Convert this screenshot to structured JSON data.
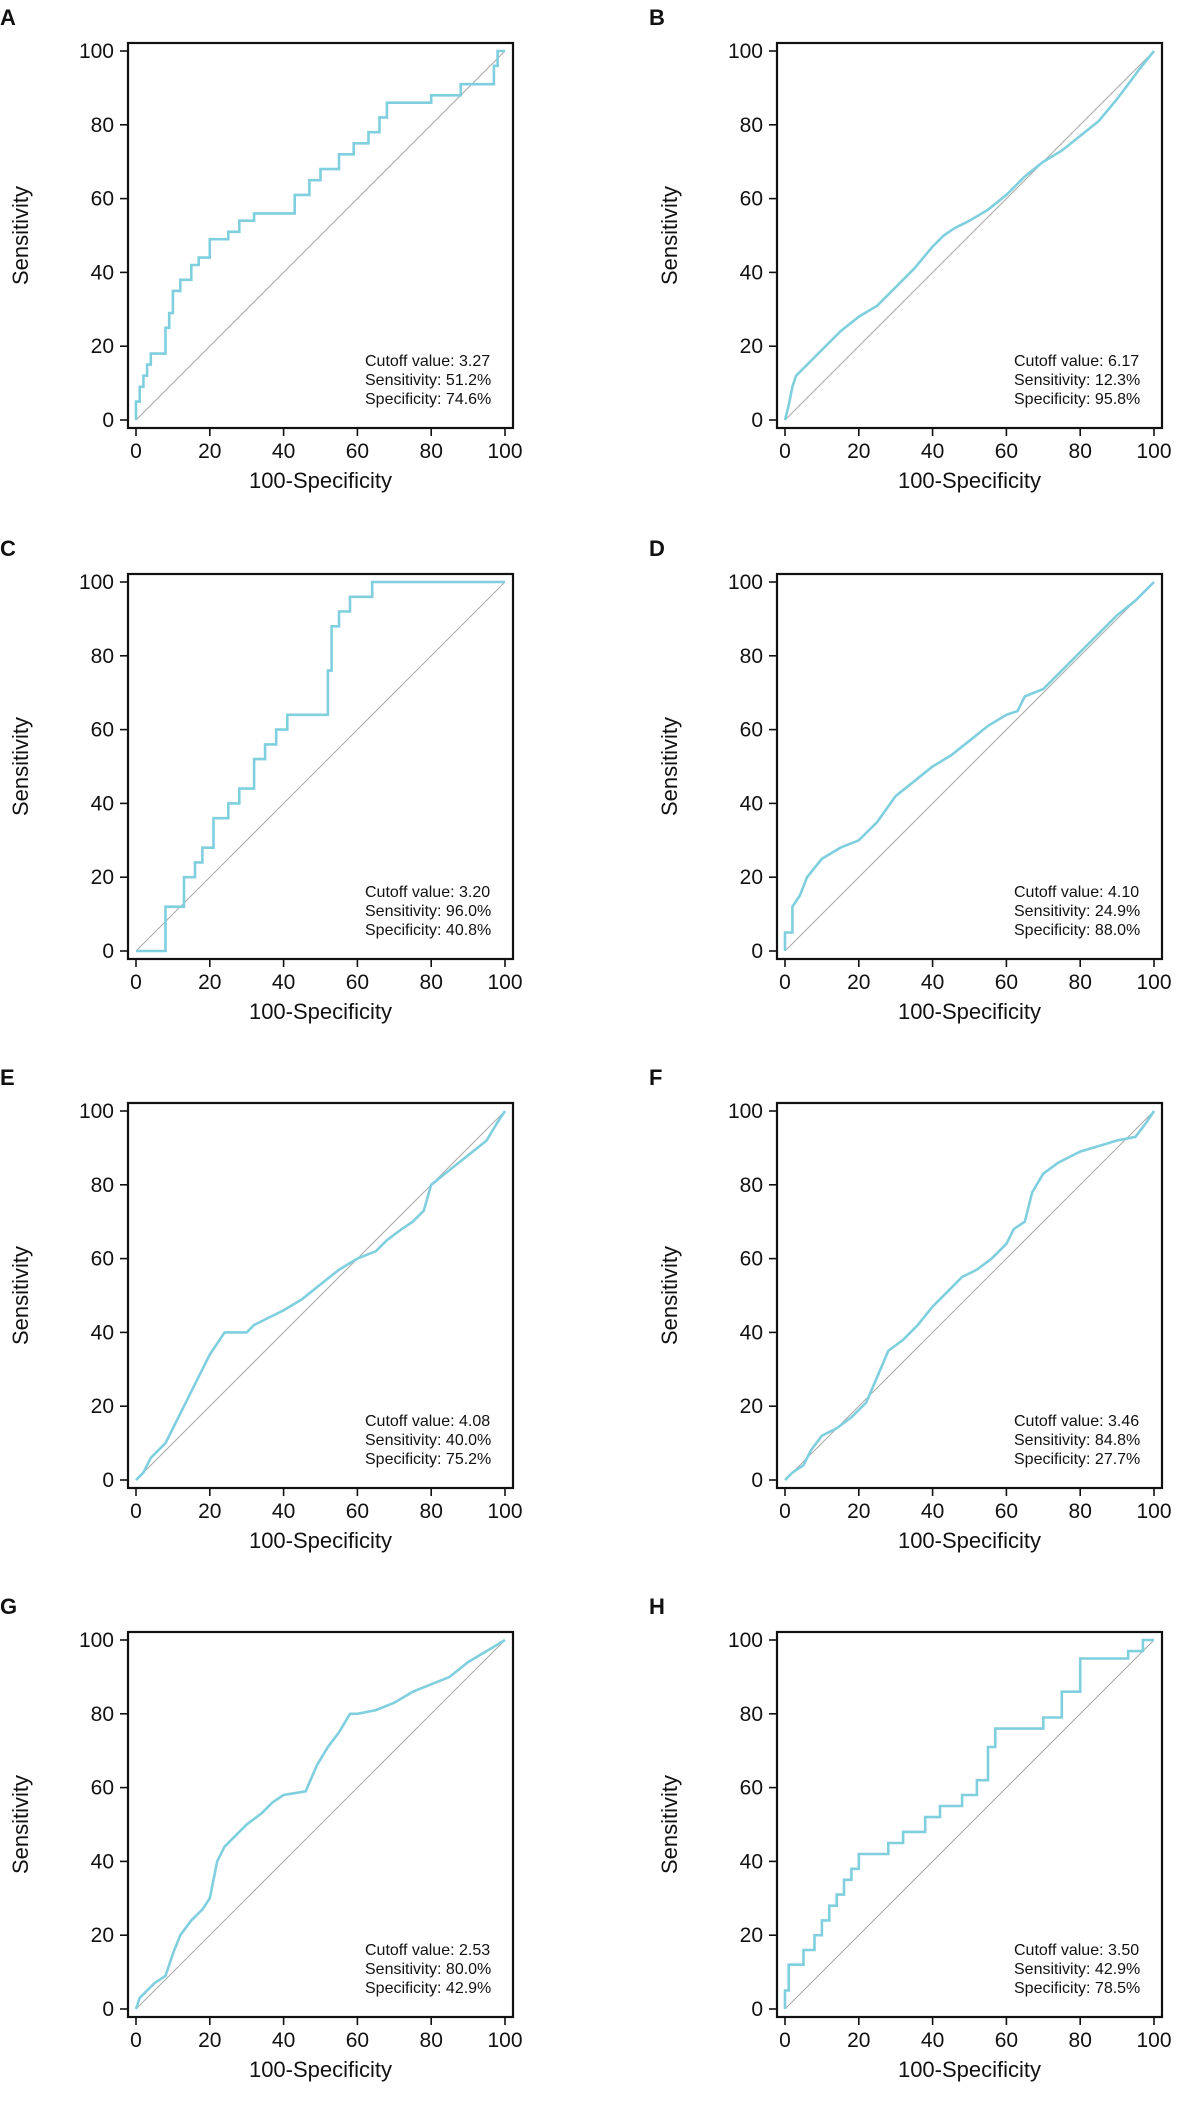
{
  "colors": {
    "roc_line": "#7fcfdf",
    "reference_line": "#a8a8a8",
    "axis": "#111111"
  },
  "chart_data": [
    {
      "panel": "A",
      "type": "line",
      "xlabel": "100-Specificity",
      "ylabel": "Sensitivity",
      "xlim": [
        0,
        100
      ],
      "ylim": [
        0,
        100
      ],
      "xticks": [
        "0",
        "20",
        "40",
        "60",
        "80",
        "100"
      ],
      "yticks": [
        "0",
        "20",
        "40",
        "60",
        "80",
        "100"
      ],
      "annotations": [
        "Cutoff value: 3.27",
        "Sensitivity: 51.2%",
        "Specificity: 74.6%"
      ],
      "series": [
        {
          "name": "ROC",
          "x": [
            0,
            0,
            1,
            1,
            2,
            2,
            3,
            3,
            4,
            4,
            8,
            8,
            9,
            9,
            10,
            10,
            12,
            12,
            15,
            15,
            17,
            17,
            20,
            20,
            25,
            25,
            28,
            28,
            32,
            32,
            43,
            43,
            47,
            47,
            50,
            50,
            55,
            55,
            59,
            59,
            63,
            63,
            66,
            66,
            68,
            68,
            80,
            80,
            88,
            88,
            97,
            97,
            98,
            98,
            100
          ],
          "y": [
            0,
            5,
            5,
            9,
            9,
            12,
            12,
            15,
            15,
            18,
            18,
            25,
            25,
            29,
            29,
            35,
            35,
            38,
            38,
            42,
            42,
            44,
            44,
            49,
            49,
            51,
            51,
            54,
            54,
            56,
            56,
            61,
            61,
            65,
            65,
            68,
            68,
            72,
            72,
            75,
            75,
            78,
            78,
            82,
            82,
            86,
            86,
            88,
            88,
            91,
            91,
            96,
            96,
            100,
            100
          ]
        },
        {
          "name": "Reference",
          "x": [
            0,
            100
          ],
          "y": [
            0,
            100
          ]
        }
      ]
    },
    {
      "panel": "B",
      "type": "line",
      "xlabel": "100-Specificity",
      "ylabel": "Sensitivity",
      "xlim": [
        0,
        100
      ],
      "ylim": [
        0,
        100
      ],
      "xticks": [
        "0",
        "20",
        "40",
        "60",
        "80",
        "100"
      ],
      "yticks": [
        "0",
        "20",
        "40",
        "60",
        "80",
        "100"
      ],
      "annotations": [
        "Cutoff value: 6.17",
        "Sensitivity: 12.3%",
        "Specificity: 95.8%"
      ],
      "series": [
        {
          "name": "ROC",
          "x": [
            0,
            1,
            2,
            3,
            5,
            8,
            12,
            15,
            20,
            25,
            30,
            35,
            40,
            43,
            46,
            50,
            55,
            60,
            65,
            70,
            75,
            80,
            85,
            90,
            93,
            96,
            100
          ],
          "y": [
            0,
            4,
            9,
            12,
            14,
            17,
            21,
            24,
            28,
            31,
            36,
            41,
            47,
            50,
            52,
            54,
            57,
            61,
            66,
            70,
            73,
            77,
            81,
            87,
            91,
            95,
            100
          ]
        },
        {
          "name": "Reference",
          "x": [
            0,
            100
          ],
          "y": [
            0,
            100
          ]
        }
      ]
    },
    {
      "panel": "C",
      "type": "line",
      "xlabel": "100-Specificity",
      "ylabel": "Sensitivity",
      "xlim": [
        0,
        100
      ],
      "ylim": [
        0,
        100
      ],
      "xticks": [
        "0",
        "20",
        "40",
        "60",
        "80",
        "100"
      ],
      "yticks": [
        "0",
        "20",
        "40",
        "60",
        "80",
        "100"
      ],
      "annotations": [
        "Cutoff value: 3.20",
        "Sensitivity: 96.0%",
        "Specificity: 40.8%"
      ],
      "series": [
        {
          "name": "ROC",
          "x": [
            0,
            8,
            8,
            13,
            13,
            16,
            16,
            18,
            18,
            21,
            21,
            25,
            25,
            28,
            28,
            32,
            32,
            35,
            35,
            38,
            38,
            41,
            41,
            52,
            52,
            53,
            53,
            55,
            55,
            58,
            58,
            64,
            64,
            100
          ],
          "y": [
            0,
            0,
            12,
            12,
            20,
            20,
            24,
            24,
            28,
            28,
            36,
            36,
            40,
            40,
            44,
            44,
            52,
            52,
            56,
            56,
            60,
            60,
            64,
            64,
            76,
            76,
            88,
            88,
            92,
            92,
            96,
            96,
            100,
            100
          ]
        },
        {
          "name": "Reference",
          "x": [
            0,
            100
          ],
          "y": [
            0,
            100
          ]
        }
      ]
    },
    {
      "panel": "D",
      "type": "line",
      "xlabel": "100-Specificity",
      "ylabel": "Sensitivity",
      "xlim": [
        0,
        100
      ],
      "ylim": [
        0,
        100
      ],
      "xticks": [
        "0",
        "20",
        "40",
        "60",
        "80",
        "100"
      ],
      "yticks": [
        "0",
        "20",
        "40",
        "60",
        "80",
        "100"
      ],
      "annotations": [
        "Cutoff value: 4.10",
        "Sensitivity: 24.9%",
        "Specificity: 88.0%"
      ],
      "series": [
        {
          "name": "ROC",
          "x": [
            0,
            0,
            2,
            2,
            4,
            6,
            10,
            15,
            20,
            25,
            30,
            35,
            40,
            45,
            50,
            55,
            60,
            63,
            65,
            70,
            75,
            80,
            85,
            90,
            95,
            100
          ],
          "y": [
            0,
            5,
            5,
            12,
            15,
            20,
            25,
            28,
            30,
            35,
            42,
            46,
            50,
            53,
            57,
            61,
            64,
            65,
            69,
            71,
            76,
            81,
            86,
            91,
            95,
            100
          ]
        },
        {
          "name": "Reference",
          "x": [
            0,
            100
          ],
          "y": [
            0,
            100
          ]
        }
      ]
    },
    {
      "panel": "E",
      "type": "line",
      "xlabel": "100-Specificity",
      "ylabel": "Sensitivity",
      "xlim": [
        0,
        100
      ],
      "ylim": [
        0,
        100
      ],
      "xticks": [
        "0",
        "20",
        "40",
        "60",
        "80",
        "100"
      ],
      "yticks": [
        "0",
        "20",
        "40",
        "60",
        "80",
        "100"
      ],
      "annotations": [
        "Cutoff value: 4.08",
        "Sensitivity: 40.0%",
        "Specificity: 75.2%"
      ],
      "series": [
        {
          "name": "ROC",
          "x": [
            0,
            1,
            2,
            3,
            4,
            6,
            8,
            10,
            12,
            14,
            16,
            18,
            20,
            22,
            24,
            26,
            30,
            32,
            36,
            40,
            45,
            50,
            55,
            60,
            65,
            68,
            72,
            75,
            78,
            80,
            85,
            90,
            95,
            98,
            100
          ],
          "y": [
            0,
            1,
            2,
            4,
            6,
            8,
            10,
            14,
            18,
            22,
            26,
            30,
            34,
            37,
            40,
            40,
            40,
            42,
            44,
            46,
            49,
            53,
            57,
            60,
            62,
            65,
            68,
            70,
            73,
            80,
            84,
            88,
            92,
            97,
            100
          ]
        },
        {
          "name": "Reference",
          "x": [
            0,
            100
          ],
          "y": [
            0,
            100
          ]
        }
      ]
    },
    {
      "panel": "F",
      "type": "line",
      "xlabel": "100-Specificity",
      "ylabel": "Sensitivity",
      "xlim": [
        0,
        100
      ],
      "ylim": [
        0,
        100
      ],
      "xticks": [
        "0",
        "20",
        "40",
        "60",
        "80",
        "100"
      ],
      "yticks": [
        "0",
        "20",
        "40",
        "60",
        "80",
        "100"
      ],
      "annotations": [
        "Cutoff value: 3.46",
        "Sensitivity: 84.8%",
        "Specificity: 27.7%"
      ],
      "series": [
        {
          "name": "ROC",
          "x": [
            0,
            2,
            5,
            7,
            10,
            14,
            18,
            22,
            25,
            28,
            32,
            36,
            40,
            44,
            48,
            52,
            56,
            60,
            62,
            65,
            67,
            70,
            74,
            80,
            90,
            95,
            98,
            100
          ],
          "y": [
            0,
            2,
            4,
            8,
            12,
            14,
            17,
            21,
            28,
            35,
            38,
            42,
            47,
            51,
            55,
            57,
            60,
            64,
            68,
            70,
            78,
            83,
            86,
            89,
            92,
            93,
            97,
            100
          ]
        },
        {
          "name": "Reference",
          "x": [
            0,
            100
          ],
          "y": [
            0,
            100
          ]
        }
      ]
    },
    {
      "panel": "G",
      "type": "line",
      "xlabel": "100-Specificity",
      "ylabel": "Sensitivity",
      "xlim": [
        0,
        100
      ],
      "ylim": [
        0,
        100
      ],
      "xticks": [
        "0",
        "20",
        "40",
        "60",
        "80",
        "100"
      ],
      "yticks": [
        "0",
        "20",
        "40",
        "60",
        "80",
        "100"
      ],
      "annotations": [
        "Cutoff value: 2.53",
        "Sensitivity: 80.0%",
        "Specificity: 42.9%"
      ],
      "series": [
        {
          "name": "ROC",
          "x": [
            0,
            1,
            3,
            5,
            8,
            10,
            12,
            15,
            18,
            20,
            21,
            22,
            24,
            26,
            30,
            34,
            37,
            40,
            46,
            49,
            52,
            55,
            58,
            60,
            65,
            70,
            75,
            80,
            85,
            90,
            95,
            100
          ],
          "y": [
            0,
            3,
            5,
            7,
            9,
            15,
            20,
            24,
            27,
            30,
            35,
            40,
            44,
            46,
            50,
            53,
            56,
            58,
            59,
            66,
            71,
            75,
            80,
            80,
            81,
            83,
            86,
            88,
            90,
            94,
            97,
            100
          ]
        },
        {
          "name": "Reference",
          "x": [
            0,
            100
          ],
          "y": [
            0,
            100
          ]
        }
      ]
    },
    {
      "panel": "H",
      "type": "line",
      "xlabel": "100-Specificity",
      "ylabel": "Sensitivity",
      "xlim": [
        0,
        100
      ],
      "ylim": [
        0,
        100
      ],
      "xticks": [
        "0",
        "20",
        "40",
        "60",
        "80",
        "100"
      ],
      "yticks": [
        "0",
        "20",
        "40",
        "60",
        "80",
        "100"
      ],
      "annotations": [
        "Cutoff value: 3.50",
        "Sensitivity: 42.9%",
        "Specificity: 78.5%"
      ],
      "series": [
        {
          "name": "ROC",
          "x": [
            0,
            0,
            1,
            1,
            5,
            5,
            8,
            8,
            10,
            10,
            12,
            12,
            14,
            14,
            16,
            16,
            18,
            18,
            20,
            20,
            28,
            28,
            32,
            32,
            38,
            38,
            42,
            42,
            48,
            48,
            52,
            52,
            55,
            55,
            57,
            57,
            70,
            70,
            75,
            75,
            80,
            80,
            93,
            93,
            97,
            97,
            100
          ],
          "y": [
            0,
            5,
            5,
            12,
            12,
            16,
            16,
            20,
            20,
            24,
            24,
            28,
            28,
            31,
            31,
            35,
            35,
            38,
            38,
            42,
            42,
            45,
            45,
            48,
            48,
            52,
            52,
            55,
            55,
            58,
            58,
            62,
            62,
            71,
            71,
            76,
            76,
            79,
            79,
            86,
            86,
            95,
            95,
            97,
            97,
            100,
            100
          ]
        },
        {
          "name": "Reference",
          "x": [
            0,
            100
          ],
          "y": [
            0,
            100
          ]
        }
      ]
    }
  ]
}
